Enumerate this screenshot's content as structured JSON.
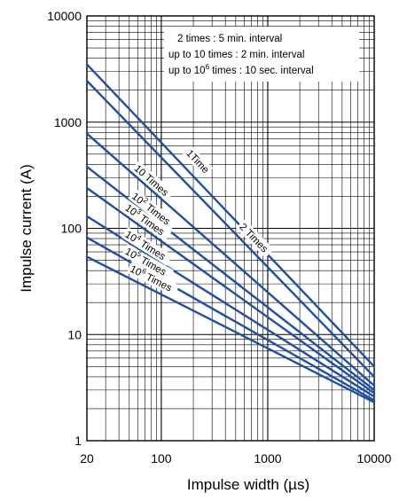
{
  "chart_data": {
    "type": "line",
    "title": "",
    "xlabel": "Impulse width (µs)",
    "ylabel": "Impulse current (A)",
    "x_scale": "log",
    "y_scale": "log",
    "xlim": [
      20,
      10000
    ],
    "ylim": [
      1,
      10000
    ],
    "x_ticks": [
      "20",
      "100",
      "1000",
      "10000"
    ],
    "y_ticks": [
      "1",
      "10",
      "100",
      "1000",
      "10000"
    ],
    "grid": true,
    "notes": [
      {
        "pre": "2 times : 5 min. interval",
        "sup": "",
        "post": ""
      },
      {
        "pre": "up to 10 times : 2 min. interval",
        "sup": "",
        "post": ""
      },
      {
        "pre": "up to 10",
        "sup": "6",
        "post": " times : 10 sec. interval"
      }
    ],
    "series": [
      {
        "name": "1Time",
        "label_base": "1Time",
        "label_sup": "",
        "label_tail": "",
        "color": "#1f4fa3",
        "x": [
          20,
          10000
        ],
        "y": [
          3500,
          5
        ],
        "label_at": 140,
        "label_dx": 10,
        "label_dy": -6
      },
      {
        "name": "2 Times",
        "label_base": "2 Times",
        "label_sup": "",
        "label_tail": "",
        "color": "#1f4fa3",
        "x": [
          20,
          10000
        ],
        "y": [
          2450,
          4
        ],
        "label_at": 410,
        "label_dx": 14,
        "label_dy": 3
      },
      {
        "name": "10 Times",
        "label_base": "10 Times",
        "label_sup": "",
        "label_tail": "",
        "color": "#1f4fa3",
        "x": [
          20,
          10000
        ],
        "y": [
          780,
          3.3
        ],
        "label_at": 55,
        "label_dx": 0,
        "label_dy": -6
      },
      {
        "name": "10^2 Times",
        "label_base": "10",
        "label_sup": "2",
        "label_tail": " Times",
        "color": "#1f4fa3",
        "x": [
          20,
          10000
        ],
        "y": [
          380,
          3.0
        ],
        "label_at": 52,
        "label_dx": 0,
        "label_dy": -4
      },
      {
        "name": "10^3 Times",
        "label_base": "10",
        "label_sup": "3",
        "label_tail": " Times",
        "color": "#1f4fa3",
        "x": [
          20,
          10000
        ],
        "y": [
          240,
          2.8
        ],
        "label_at": 45,
        "label_dx": 0,
        "label_dy": -6
      },
      {
        "name": "10^4 Times",
        "label_base": "10",
        "label_sup": "4",
        "label_tail": " Times",
        "color": "#1f4fa3",
        "x": [
          20,
          10000
        ],
        "y": [
          130,
          2.6
        ],
        "label_at": 45,
        "label_dx": 0,
        "label_dy": -4
      },
      {
        "name": "10^5 Times",
        "label_base": "10",
        "label_sup": "5",
        "label_tail": " Times",
        "color": "#1f4fa3",
        "x": [
          20,
          10000
        ],
        "y": [
          82,
          2.4
        ],
        "label_at": 45,
        "label_dx": 0,
        "label_dy": -6
      },
      {
        "name": "10^6 Times",
        "label_base": "10",
        "label_sup": "6",
        "label_tail": " Times",
        "color": "#1f4fa3",
        "x": [
          20,
          10000
        ],
        "y": [
          54,
          2.3
        ],
        "label_at": 50,
        "label_dx": 0,
        "label_dy": -8
      }
    ]
  }
}
